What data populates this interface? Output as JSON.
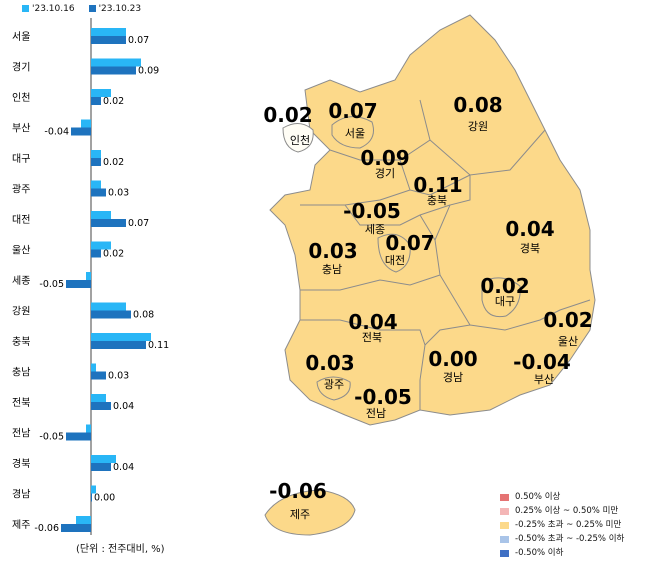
{
  "colors": {
    "series_1016": "#29b6f6",
    "series_1023": "#1e73be",
    "map_fill": "#fcd98a",
    "map_stroke": "#8c8c8c"
  },
  "legend_top": {
    "s1": "'23.10.16",
    "s2": "'23.10.23"
  },
  "unit_note": "(단위 : 전주대비, %)",
  "chart_data": [
    {
      "type": "bar",
      "orientation": "horizontal",
      "categories": [
        "서울",
        "경기",
        "인천",
        "부산",
        "대구",
        "광주",
        "대전",
        "울산",
        "세종",
        "강원",
        "충북",
        "충남",
        "전북",
        "전남",
        "경북",
        "경남",
        "제주"
      ],
      "series": [
        {
          "name": "'23.10.16",
          "values": [
            0.07,
            0.1,
            0.04,
            -0.02,
            0.02,
            0.02,
            0.04,
            0.04,
            -0.01,
            0.07,
            0.12,
            0.01,
            0.03,
            -0.01,
            0.05,
            0.01,
            -0.03
          ]
        },
        {
          "name": "'23.10.23",
          "values": [
            0.07,
            0.09,
            0.02,
            -0.04,
            0.02,
            0.03,
            0.07,
            0.02,
            -0.05,
            0.08,
            0.11,
            0.03,
            0.04,
            -0.05,
            0.04,
            0.0,
            -0.06
          ]
        }
      ],
      "data_labels": [
        "0.07",
        "0.09",
        "0.02",
        "-0.04",
        "0.02",
        "0.03",
        "0.07",
        "0.02",
        "-0.05",
        "0.08",
        "0.11",
        "0.03",
        "0.04",
        "-0.05",
        "0.04",
        "0.00",
        "-0.06"
      ]
    },
    {
      "type": "map",
      "regions": [
        {
          "name": "인천",
          "value": "0.02"
        },
        {
          "name": "서울",
          "value": "0.07"
        },
        {
          "name": "강원",
          "value": "0.08"
        },
        {
          "name": "경기",
          "value": "0.09"
        },
        {
          "name": "충북",
          "value": "0.11"
        },
        {
          "name": "세종",
          "value": "-0.05"
        },
        {
          "name": "경북",
          "value": "0.04"
        },
        {
          "name": "충남",
          "value": "0.03"
        },
        {
          "name": "대전",
          "value": "0.07"
        },
        {
          "name": "대구",
          "value": "0.02"
        },
        {
          "name": "울산",
          "value": "0.02"
        },
        {
          "name": "전북",
          "value": "0.04"
        },
        {
          "name": "광주",
          "value": "0.03"
        },
        {
          "name": "경남",
          "value": "0.00"
        },
        {
          "name": "부산",
          "value": "-0.04"
        },
        {
          "name": "전남",
          "value": "-0.05"
        },
        {
          "name": "제주",
          "value": "-0.06"
        }
      ],
      "legend": [
        {
          "label": "0.50% 이상",
          "color": "#e57373"
        },
        {
          "label": "0.25% 이상 ~ 0.50% 미만",
          "color": "#f4b6b6"
        },
        {
          "label": "-0.25% 초과 ~ 0.25% 미만",
          "color": "#fcd98a"
        },
        {
          "label": "-0.50% 초과 ~ -0.25% 이하",
          "color": "#a9c4e8"
        },
        {
          "label": "-0.50% 이하",
          "color": "#3f6fc4"
        }
      ]
    }
  ]
}
